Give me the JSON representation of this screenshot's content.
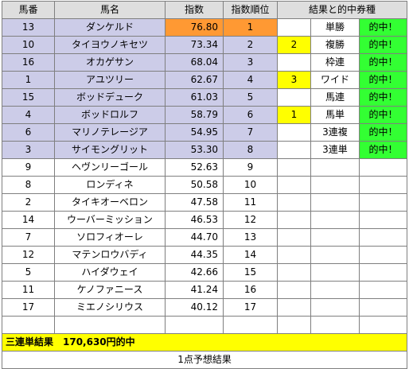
{
  "headers": [
    "馬番",
    "馬名",
    "指数",
    "指数順位",
    "結果と的中券種"
  ],
  "rows": [
    {
      "num": "13",
      "name": "ダンケルド",
      "score": "76.80",
      "rank": "1",
      "res_num": "",
      "bet": "単勝",
      "hit": "的中！"
    },
    {
      "num": "10",
      "name": "タイヨウノキセツ",
      "score": "73.34",
      "rank": "2",
      "res_num": "2",
      "bet": "複勝",
      "hit": "的中！"
    },
    {
      "num": "16",
      "name": "オカゲサン",
      "score": "68.04",
      "rank": "3",
      "res_num": "",
      "bet": "枠連",
      "hit": "的中！"
    },
    {
      "num": "1",
      "name": "アユツリー",
      "score": "62.67",
      "rank": "4",
      "res_num": "3",
      "bet": "ワイド",
      "hit": "的中！"
    },
    {
      "num": "15",
      "name": "ボッドデューク",
      "score": "61.03",
      "rank": "5",
      "res_num": "",
      "bet": "馬連",
      "hit": "的中！"
    },
    {
      "num": "4",
      "name": "ボッドロルフ",
      "score": "58.79",
      "rank": "6",
      "res_num": "1",
      "bet": "馬単",
      "hit": "的中！"
    },
    {
      "num": "6",
      "name": "マリノテレージア",
      "score": "54.95",
      "rank": "7",
      "res_num": "",
      "bet": "3連複",
      "hit": "的中！"
    },
    {
      "num": "3",
      "name": "サイモングリット",
      "score": "53.30",
      "rank": "8",
      "res_num": "",
      "bet": "3連単",
      "hit": "的中！"
    },
    {
      "num": "9",
      "name": "ヘヴンリーゴール",
      "score": "52.63",
      "rank": "9",
      "res_num": "",
      "bet": "",
      "hit": ""
    },
    {
      "num": "8",
      "name": "ロンディネ",
      "score": "50.58",
      "rank": "10",
      "res_num": "",
      "bet": "",
      "hit": ""
    },
    {
      "num": "2",
      "name": "タイキオーベロン",
      "score": "47.58",
      "rank": "11",
      "res_num": "",
      "bet": "",
      "hit": ""
    },
    {
      "num": "14",
      "name": "ウーバーミッション",
      "score": "46.53",
      "rank": "12",
      "res_num": "",
      "bet": "",
      "hit": ""
    },
    {
      "num": "7",
      "name": "ソロフィオーレ",
      "score": "44.70",
      "rank": "13",
      "res_num": "",
      "bet": "",
      "hit": ""
    },
    {
      "num": "12",
      "name": "マテンロウバディ",
      "score": "44.35",
      "rank": "14",
      "res_num": "",
      "bet": "",
      "hit": ""
    },
    {
      "num": "5",
      "name": "ハイダウェイ",
      "score": "42.66",
      "rank": "15",
      "res_num": "",
      "bet": "",
      "hit": ""
    },
    {
      "num": "11",
      "name": "ケノファニース",
      "score": "41.24",
      "rank": "16",
      "res_num": "",
      "bet": "",
      "hit": ""
    },
    {
      "num": "17",
      "name": "ミエノシリウス",
      "score": "40.12",
      "rank": "17",
      "res_num": "",
      "bet": "",
      "hit": ""
    }
  ],
  "result_text": "三連単結果　170,630円的中",
  "footer_text": "1点予想結果",
  "colors": {
    "highlight_rows": "#cccce8",
    "top_score": "#ff9933",
    "result_number": "#ffff00",
    "hit": "#33ff33",
    "result_bar": "#ffff00"
  }
}
